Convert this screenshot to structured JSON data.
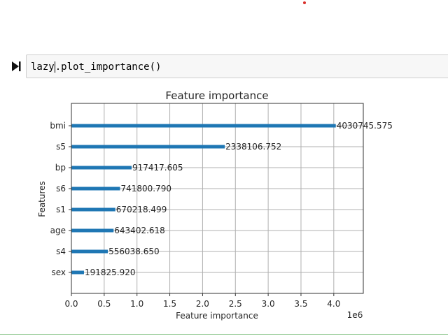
{
  "cell": {
    "code_before_cursor": "lazy",
    "code_after_cursor": ".plot_importance()"
  },
  "chart_data": {
    "type": "bar",
    "orientation": "horizontal",
    "title": "Feature importance",
    "xlabel": "Feature importance",
    "ylabel": "Features",
    "x_offset_label": "1e6",
    "xlim": [
      0,
      4.45
    ],
    "x_ticks": [
      "0.0",
      "0.5",
      "1.0",
      "1.5",
      "2.0",
      "2.5",
      "3.0",
      "3.5",
      "4.0"
    ],
    "grid": true,
    "bar_color": "#1f77b4",
    "categories": [
      "bmi",
      "s5",
      "bp",
      "s6",
      "s1",
      "age",
      "s4",
      "sex"
    ],
    "values": [
      4030745.575,
      2338106.752,
      917417.605,
      741800.79,
      670218.499,
      643402.618,
      556038.65,
      191825.92
    ],
    "value_labels": [
      "4030745.575",
      "2338106.752",
      "917417.605",
      "741800.790",
      "670218.499",
      "643402.618",
      "556038.650",
      "191825.920"
    ]
  }
}
